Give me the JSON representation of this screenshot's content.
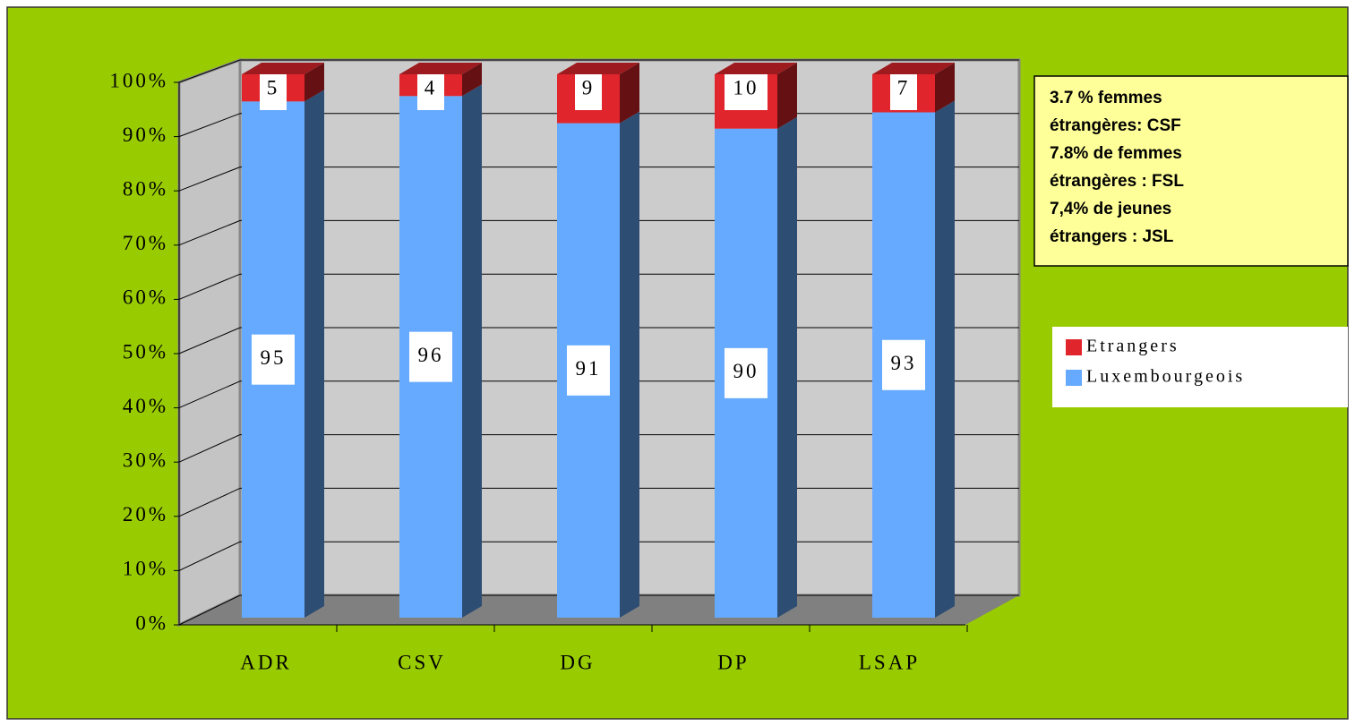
{
  "chart_data": {
    "type": "bar",
    "stacked": true,
    "categories": [
      "ADR",
      "CSV",
      "DG",
      "DP",
      "LSAP"
    ],
    "series": [
      {
        "name": "Luxembourgeois",
        "color": "#66aaff",
        "values": [
          95,
          96,
          91,
          90,
          93
        ]
      },
      {
        "name": "Etrangers",
        "color": "#e0262c",
        "values": [
          5,
          4,
          9,
          10,
          7
        ]
      }
    ],
    "ylim": [
      0,
      100
    ],
    "yticks": [
      {
        "value": 0,
        "label": "0%"
      },
      {
        "value": 10,
        "label": "10%"
      },
      {
        "value": 20,
        "label": "20%"
      },
      {
        "value": 30,
        "label": "30%"
      },
      {
        "value": 40,
        "label": "40%"
      },
      {
        "value": 50,
        "label": "50%"
      },
      {
        "value": 60,
        "label": "60%"
      },
      {
        "value": 70,
        "label": "70%"
      },
      {
        "value": 80,
        "label": "80%"
      },
      {
        "value": 90,
        "label": "90%"
      },
      {
        "value": 100,
        "label": "100%"
      }
    ],
    "grid": true,
    "legend": "right",
    "annotations": [
      "3.7 % femmes",
      "étrangères: CSF",
      "7.8% de femmes",
      "étrangères : FSL",
      "7,4% de jeunes",
      "étrangers : JSL"
    ]
  }
}
